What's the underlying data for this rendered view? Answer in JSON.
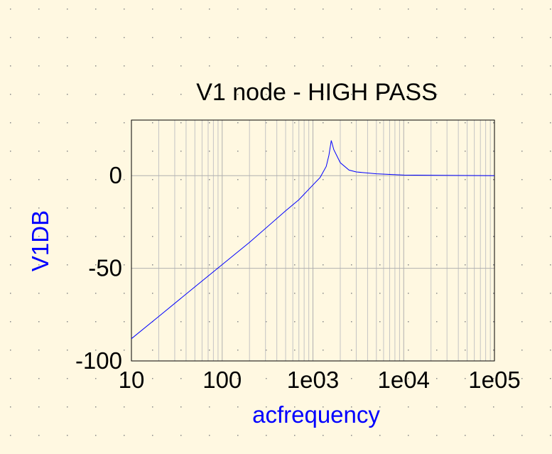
{
  "chart_data": {
    "type": "line",
    "title": "V1 node - HIGH PASS",
    "xlabel": "acfrequency",
    "ylabel": "V1DB",
    "x_scale": "log",
    "xlim": [
      10,
      100000
    ],
    "ylim": [
      -100,
      30
    ],
    "x_ticks": [
      {
        "value": 10,
        "label": "10"
      },
      {
        "value": 100,
        "label": "100"
      },
      {
        "value": 1000,
        "label": "1e03"
      },
      {
        "value": 10000,
        "label": "1e04"
      },
      {
        "value": 100000,
        "label": "1e05"
      }
    ],
    "y_ticks": [
      {
        "value": 0,
        "label": "0"
      },
      {
        "value": -50,
        "label": "-50"
      },
      {
        "value": -100,
        "label": "-100"
      }
    ],
    "grid": true,
    "series": [
      {
        "color": "#0000ff",
        "x": [
          10,
          20,
          50,
          100,
          200,
          500,
          700,
          1000,
          1200,
          1400,
          1500,
          1591,
          1700,
          2000,
          2500,
          3000,
          5000,
          10000,
          100000
        ],
        "y": [
          -88,
          -76,
          -60,
          -48,
          -36,
          -19,
          -13,
          -5,
          -1,
          5,
          11,
          19,
          14,
          7,
          3,
          2,
          1,
          0.3,
          0
        ]
      }
    ]
  }
}
